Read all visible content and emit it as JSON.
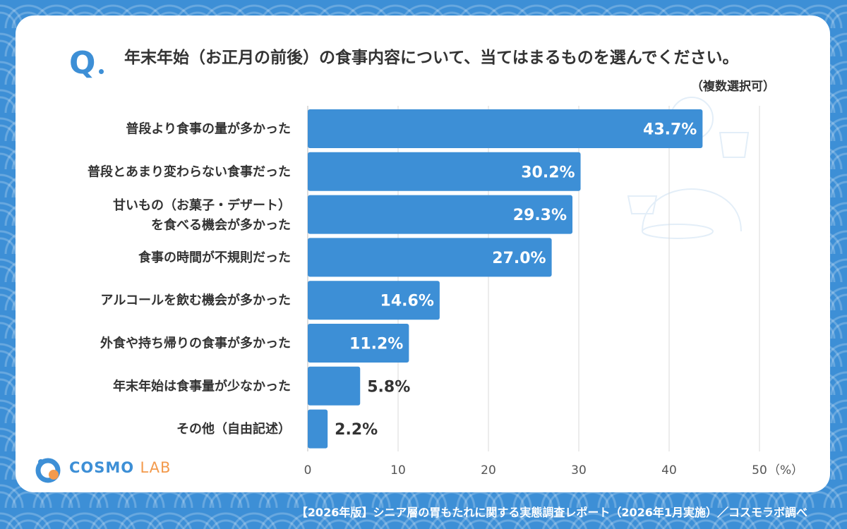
{
  "question": {
    "mark": "Q",
    "text": "年末年始（お正月の前後）の食事内容について、当てはまるものを選んでください。",
    "note": "（複数選択可）"
  },
  "chart_data": {
    "type": "bar",
    "orientation": "horizontal",
    "categories": [
      [
        "普段より食事の量が多かった"
      ],
      [
        "普段とあまり変わらない食事だった"
      ],
      [
        "甘いもの（お菓子・デザート）",
        "を食べる機会が多かった"
      ],
      [
        "食事の時間が不規則だった"
      ],
      [
        "アルコールを飲む機会が多かった"
      ],
      [
        "外食や持ち帰りの食事が多かった"
      ],
      [
        "年末年始は食事量が少なかった"
      ],
      [
        "その他（自由記述）"
      ]
    ],
    "values": [
      43.7,
      30.2,
      29.3,
      27.0,
      14.6,
      11.2,
      5.8,
      2.2
    ],
    "value_labels": [
      "43.7%",
      "30.2%",
      "29.3%",
      "27.0%",
      "14.6%",
      "11.2%",
      "5.8%",
      "2.2%"
    ],
    "xlim": [
      0,
      50
    ],
    "xticks": [
      "0",
      "10",
      "20",
      "30",
      "40",
      "50"
    ],
    "x_unit": "（%）",
    "grid": true,
    "bar_color": "#3d8fd6"
  },
  "logo": {
    "name": "COSMO",
    "suffix": "LAB"
  },
  "footer": "【2026年版】シニア層の胃もたれに関する実態調査レポート（2026年1月実施）／コスモラボ調べ",
  "colors": {
    "accent": "#3d8fd6",
    "logo_orange": "#f39a4c"
  }
}
